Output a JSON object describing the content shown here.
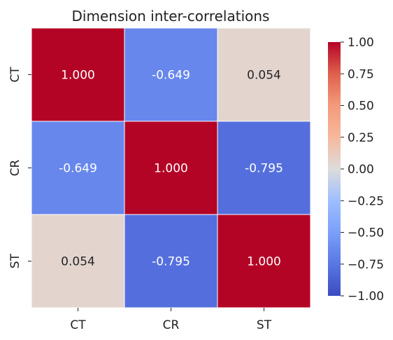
{
  "chart_data": {
    "type": "heatmap",
    "title": "Dimension inter-correlations",
    "x_categories": [
      "CT",
      "CR",
      "ST"
    ],
    "y_categories": [
      "CT",
      "CR",
      "ST"
    ],
    "values": [
      [
        1.0,
        -0.649,
        0.054
      ],
      [
        -0.649,
        1.0,
        -0.795
      ],
      [
        0.054,
        -0.795,
        1.0
      ]
    ],
    "cell_labels": [
      [
        "1.000",
        "-0.649",
        "0.054"
      ],
      [
        "-0.649",
        "1.000",
        "-0.795"
      ],
      [
        "0.054",
        "-0.795",
        "1.000"
      ]
    ],
    "colormap": "coolwarm",
    "vmin": -1.0,
    "vmax": 1.0,
    "colorbar": {
      "ticks": [
        1.0,
        0.75,
        0.5,
        0.25,
        0.0,
        -0.25,
        -0.5,
        -0.75,
        -1.0
      ],
      "tick_labels": [
        "1.00",
        "0.75",
        "0.50",
        "0.25",
        "0.00",
        "−0.25",
        "−0.50",
        "−0.75",
        "−1.00"
      ]
    },
    "grid": false,
    "legend": "colorbar-right"
  }
}
